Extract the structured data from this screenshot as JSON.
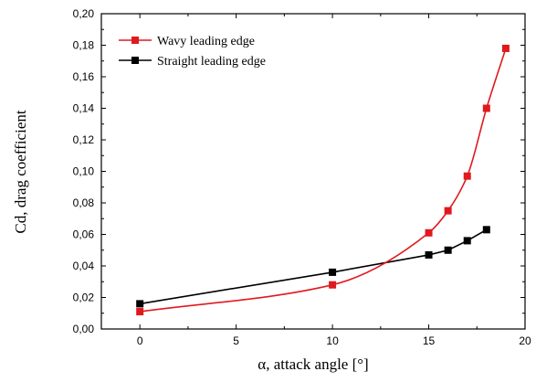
{
  "chart_data": {
    "type": "line",
    "xlabel": "α, attack angle [°]",
    "ylabel": "Cd, drag coefficient",
    "xlim": [
      -2,
      20
    ],
    "ylim": [
      0,
      0.2
    ],
    "x_ticks": [
      {
        "value": 0,
        "label": "0"
      },
      {
        "value": 5,
        "label": "5"
      },
      {
        "value": 10,
        "label": "10"
      },
      {
        "value": 15,
        "label": "15"
      },
      {
        "value": 20,
        "label": "20"
      }
    ],
    "y_ticks": [
      {
        "value": 0,
        "label": "0,00"
      },
      {
        "value": 0.02,
        "label": "0,02"
      },
      {
        "value": 0.04,
        "label": "0,04"
      },
      {
        "value": 0.06,
        "label": "0,06"
      },
      {
        "value": 0.08,
        "label": "0,08"
      },
      {
        "value": 0.1,
        "label": "0,10"
      },
      {
        "value": 0.12,
        "label": "0,12"
      },
      {
        "value": 0.14,
        "label": "0,14"
      },
      {
        "value": 0.16,
        "label": "0,16"
      },
      {
        "value": 0.18,
        "label": "0,18"
      },
      {
        "value": 0.2,
        "label": "0,20"
      }
    ],
    "grid": false,
    "legend_position": "top-left",
    "series": [
      {
        "name": "Wavy leading edge",
        "color": "#e0191e",
        "curve": "smooth",
        "x": [
          0,
          10,
          15,
          16,
          17,
          18,
          19
        ],
        "y": [
          0.011,
          0.028,
          0.061,
          0.075,
          0.097,
          0.14,
          0.178
        ]
      },
      {
        "name": "Straight leading edge",
        "color": "#000000",
        "curve": "linear",
        "x": [
          0,
          10,
          15,
          16,
          17,
          18
        ],
        "y": [
          0.016,
          0.036,
          0.047,
          0.05,
          0.056,
          0.063
        ]
      }
    ]
  }
}
